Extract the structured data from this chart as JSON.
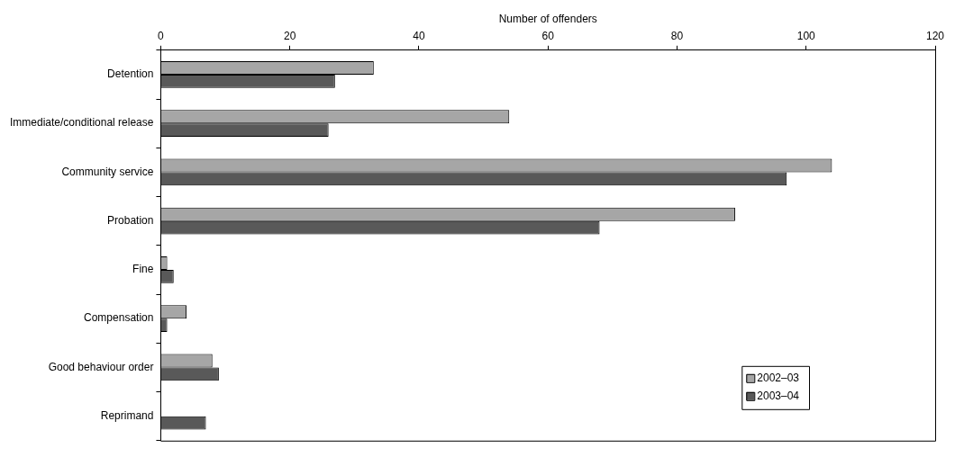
{
  "chart_data": {
    "type": "bar",
    "orientation": "horizontal",
    "xlabel": "Number of offenders",
    "categories": [
      "Detention",
      "Immediate/conditional release",
      "Community service",
      "Probation",
      "Fine",
      "Compensation",
      "Good behaviour order",
      "Reprimand"
    ],
    "series": [
      {
        "name": "2002–03",
        "color": "#a6a6a6",
        "values": [
          33,
          54,
          104,
          89,
          1,
          4,
          8,
          0
        ]
      },
      {
        "name": "2003–04",
        "color": "#595959",
        "values": [
          27,
          26,
          97,
          68,
          2,
          1,
          9,
          7
        ]
      }
    ],
    "xlim": [
      0,
      120
    ],
    "xticks": [
      0,
      20,
      40,
      60,
      80,
      100,
      120
    ],
    "legend": "bottom right"
  }
}
